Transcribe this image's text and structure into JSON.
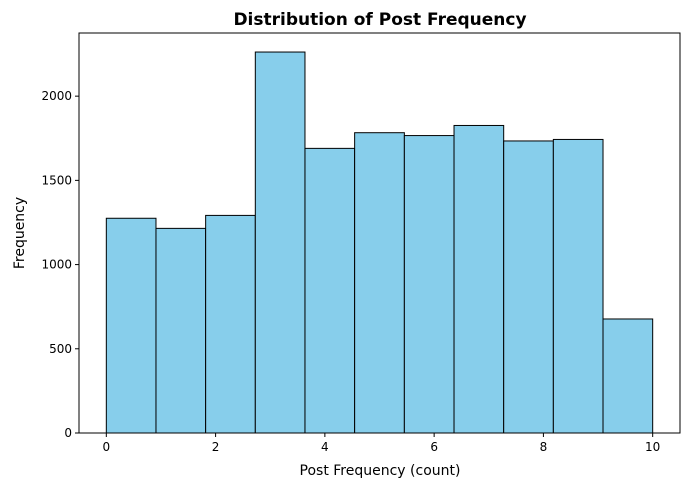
{
  "chart_data": {
    "type": "bar",
    "title": "Distribution of Post Frequency",
    "xlabel": "Post Frequency (count)",
    "ylabel": "Frequency",
    "bin_edges": [
      0,
      0.909,
      1.818,
      2.727,
      3.636,
      4.545,
      5.455,
      6.364,
      7.273,
      8.182,
      9.091,
      10
    ],
    "values": [
      1275,
      1215,
      1292,
      2262,
      1690,
      1783,
      1766,
      1826,
      1734,
      1743,
      677
    ],
    "xlim": [
      -0.5,
      10.5
    ],
    "ylim": [
      0,
      2375
    ],
    "x_ticks": [
      0,
      2,
      4,
      6,
      8,
      10
    ],
    "y_ticks": [
      0,
      500,
      1000,
      1500,
      2000
    ],
    "bar_color": "#87ceeb",
    "edge_color": "#000000",
    "grid": false
  }
}
